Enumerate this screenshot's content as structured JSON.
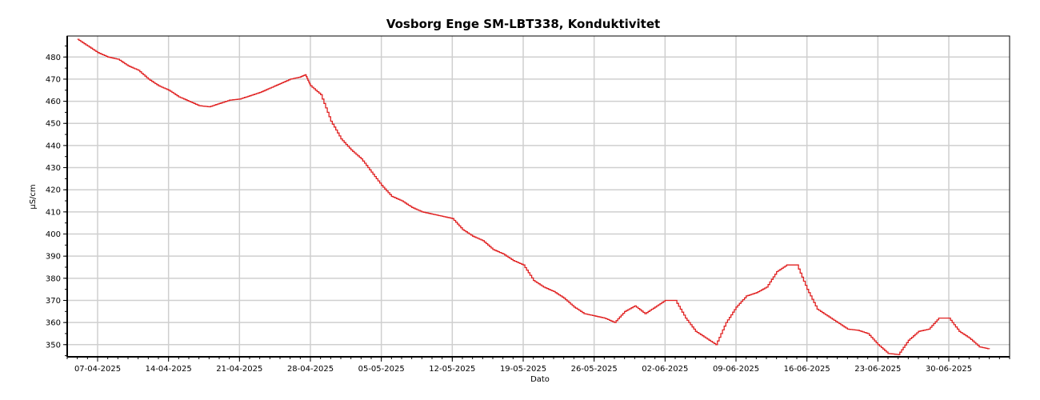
{
  "chart_data": {
    "type": "line",
    "title": "Vosborg Enge SM-LBT338, Konduktivitet",
    "xlabel": "Dato",
    "ylabel": "µS/cm",
    "xlim": [
      "2025-04-04",
      "2025-07-06"
    ],
    "ylim": [
      344.5,
      489.5
    ],
    "grid": true,
    "line_color": "#e02020",
    "x_ticks": [
      "07-04-2025",
      "14-04-2025",
      "21-04-2025",
      "28-04-2025",
      "05-05-2025",
      "12-05-2025",
      "19-05-2025",
      "26-05-2025",
      "02-06-2025",
      "09-06-2025",
      "16-06-2025",
      "23-06-2025",
      "30-06-2025"
    ],
    "y_ticks": [
      350,
      360,
      370,
      380,
      390,
      400,
      410,
      420,
      430,
      440,
      450,
      460,
      470,
      480
    ],
    "series": [
      {
        "points": [
          [
            "2025-04-05",
            488
          ],
          [
            "2025-04-06",
            485
          ],
          [
            "2025-04-07",
            482
          ],
          [
            "2025-04-08",
            480
          ],
          [
            "2025-04-09",
            479
          ],
          [
            "2025-04-10",
            476
          ],
          [
            "2025-04-11",
            474
          ],
          [
            "2025-04-12",
            470
          ],
          [
            "2025-04-13",
            467
          ],
          [
            "2025-04-14",
            465
          ],
          [
            "2025-04-15",
            462
          ],
          [
            "2025-04-16",
            460
          ],
          [
            "2025-04-17",
            458
          ],
          [
            "2025-04-18",
            457.5
          ],
          [
            "2025-04-19",
            459
          ],
          [
            "2025-04-20",
            460.5
          ],
          [
            "2025-04-21",
            461
          ],
          [
            "2025-04-22",
            462.5
          ],
          [
            "2025-04-23",
            464
          ],
          [
            "2025-04-24",
            466
          ],
          [
            "2025-04-25",
            468
          ],
          [
            "2025-04-26",
            470
          ],
          [
            "2025-04-27",
            471
          ],
          [
            "2025-04-27T12",
            472
          ],
          [
            "2025-04-28",
            467
          ],
          [
            "2025-04-29",
            463
          ],
          [
            "2025-04-30",
            451
          ],
          [
            "2025-05-01",
            443
          ],
          [
            "2025-05-02",
            438
          ],
          [
            "2025-05-03",
            434
          ],
          [
            "2025-05-04",
            428
          ],
          [
            "2025-05-05",
            422
          ],
          [
            "2025-05-06",
            417
          ],
          [
            "2025-05-07",
            415
          ],
          [
            "2025-05-08",
            412
          ],
          [
            "2025-05-09",
            410
          ],
          [
            "2025-05-10",
            409
          ],
          [
            "2025-05-11",
            408
          ],
          [
            "2025-05-12",
            407
          ],
          [
            "2025-05-13",
            402
          ],
          [
            "2025-05-14",
            399
          ],
          [
            "2025-05-15",
            397
          ],
          [
            "2025-05-16",
            393
          ],
          [
            "2025-05-17",
            391
          ],
          [
            "2025-05-18",
            388
          ],
          [
            "2025-05-19",
            386
          ],
          [
            "2025-05-20",
            379
          ],
          [
            "2025-05-21",
            376
          ],
          [
            "2025-05-22",
            374
          ],
          [
            "2025-05-23",
            371
          ],
          [
            "2025-05-24",
            367
          ],
          [
            "2025-05-25",
            364
          ],
          [
            "2025-05-26",
            363
          ],
          [
            "2025-05-27",
            362
          ],
          [
            "2025-05-28",
            360
          ],
          [
            "2025-05-29",
            365
          ],
          [
            "2025-05-30",
            367.5
          ],
          [
            "2025-05-31",
            364
          ],
          [
            "2025-06-01",
            367
          ],
          [
            "2025-06-02",
            370
          ],
          [
            "2025-06-03",
            370
          ],
          [
            "2025-06-04",
            362
          ],
          [
            "2025-06-05",
            356
          ],
          [
            "2025-06-06",
            353
          ],
          [
            "2025-06-07",
            350
          ],
          [
            "2025-06-08",
            360
          ],
          [
            "2025-06-09",
            367
          ],
          [
            "2025-06-10",
            372
          ],
          [
            "2025-06-11",
            373.5
          ],
          [
            "2025-06-12",
            376
          ],
          [
            "2025-06-13",
            383
          ],
          [
            "2025-06-14",
            386
          ],
          [
            "2025-06-15",
            386
          ],
          [
            "2025-06-16",
            375
          ],
          [
            "2025-06-17",
            366
          ],
          [
            "2025-06-18",
            363
          ],
          [
            "2025-06-19",
            360
          ],
          [
            "2025-06-20",
            357
          ],
          [
            "2025-06-21",
            356.5
          ],
          [
            "2025-06-22",
            355
          ],
          [
            "2025-06-23",
            350
          ],
          [
            "2025-06-24",
            346
          ],
          [
            "2025-06-25",
            345.5
          ],
          [
            "2025-06-26",
            352
          ],
          [
            "2025-06-27",
            356
          ],
          [
            "2025-06-28",
            357
          ],
          [
            "2025-06-29",
            362
          ],
          [
            "2025-06-30",
            362
          ],
          [
            "2025-07-01",
            356
          ],
          [
            "2025-07-02",
            353
          ],
          [
            "2025-07-03",
            349
          ],
          [
            "2025-07-04",
            348
          ]
        ]
      }
    ]
  }
}
